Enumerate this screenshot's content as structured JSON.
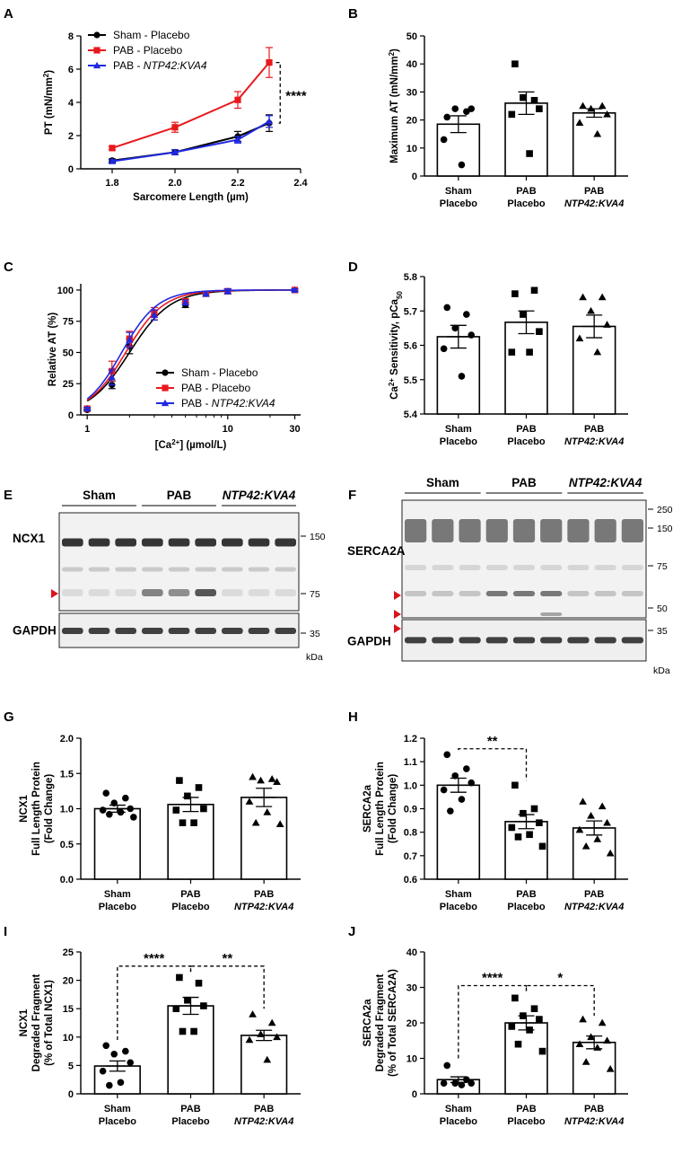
{
  "panels": {
    "A": {
      "letter": "A"
    },
    "B": {
      "letter": "B"
    },
    "C": {
      "letter": "C"
    },
    "D": {
      "letter": "D"
    },
    "E": {
      "letter": "E"
    },
    "F": {
      "letter": "F"
    },
    "G": {
      "letter": "G"
    },
    "H": {
      "letter": "H"
    },
    "I": {
      "letter": "I"
    },
    "J": {
      "letter": "J"
    }
  },
  "colors": {
    "sham": "#000000",
    "pab": "#e8191c",
    "kva4": "#1f29e0",
    "marker": "#d9151b"
  },
  "blot_E": {
    "groups": [
      "Sham",
      "PAB",
      "NTP42:KVA4"
    ],
    "rows": [
      "NCX1",
      "GAPDH"
    ],
    "mw": [
      "150",
      "75",
      "35"
    ],
    "unit": "kDa"
  },
  "blot_F": {
    "groups": [
      "Sham",
      "PAB",
      "NTP42:KVA4"
    ],
    "rows": [
      "SERCA2A",
      "GAPDH"
    ],
    "mw": [
      "250",
      "150",
      "75",
      "50",
      "35"
    ],
    "unit": "kDa"
  },
  "chart_data": [
    {
      "panel": "A",
      "type": "line",
      "xlabel": "Sarcomere Length (µm)",
      "ylabel": "PT (mN/mm",
      "ylabel_sup": "2",
      "ylabel_end": ")",
      "xlim": [
        1.7,
        2.4
      ],
      "ylim": [
        0,
        8
      ],
      "xticks": [
        "1.8",
        "2.0",
        "2.2",
        "2.4"
      ],
      "yticks": [
        "0",
        "2",
        "4",
        "6",
        "8"
      ],
      "legend": "top-left",
      "series": [
        {
          "name": "Sham - Placebo",
          "marker": "circle",
          "color": "#000000",
          "x": [
            1.8,
            2.0,
            2.2,
            2.3
          ],
          "y": [
            0.5,
            1.0,
            1.95,
            2.75
          ],
          "err": [
            0.1,
            0.15,
            0.3,
            0.5
          ]
        },
        {
          "name": "PAB - Placebo",
          "marker": "square",
          "color": "#e8191c",
          "x": [
            1.8,
            2.0,
            2.2,
            2.3
          ],
          "y": [
            1.25,
            2.5,
            4.15,
            6.4
          ],
          "err": [
            0.1,
            0.3,
            0.5,
            0.9
          ]
        },
        {
          "name": "PAB - ",
          "name_italic": "NTP42:KVA4",
          "marker": "triangle",
          "color": "#1f29e0",
          "x": [
            1.8,
            2.0,
            2.2,
            2.3
          ],
          "y": [
            0.45,
            1.0,
            1.75,
            2.85
          ],
          "err": [
            0.1,
            0.15,
            0.2,
            0.35
          ]
        }
      ],
      "annotation": "****"
    },
    {
      "panel": "B",
      "type": "bar",
      "ylabel": "Maximum AT (mN/mm",
      "ylabel_sup": "2",
      "ylabel_end": ")",
      "ylim": [
        0,
        50
      ],
      "yticks": [
        "0",
        "10",
        "20",
        "30",
        "40",
        "50"
      ],
      "categories": [
        [
          "Sham",
          "Placebo"
        ],
        [
          "PAB",
          "Placebo"
        ],
        [
          "PAB",
          "NTP42:KVA4"
        ]
      ],
      "values": [
        18.5,
        26,
        22.5
      ],
      "sem": [
        3,
        4,
        1.5
      ],
      "points": [
        [
          21,
          23,
          24,
          24,
          13,
          4
        ],
        [
          40,
          27,
          28,
          24,
          22,
          8
        ],
        [
          25,
          25,
          24,
          22,
          19,
          15
        ]
      ],
      "markers": [
        "circle",
        "square",
        "triangle"
      ]
    },
    {
      "panel": "C",
      "type": "line",
      "xlabel": "[Ca",
      "xlabel_sup": "2+",
      "xlabel_end": "] (µmol/L)",
      "ylabel": "Relative AT (%)",
      "xscale": "log",
      "xlim": [
        0.9,
        33
      ],
      "ylim": [
        0,
        105
      ],
      "xticks": [
        "1",
        "10",
        "30"
      ],
      "yticks": [
        "0",
        "25",
        "50",
        "75",
        "100"
      ],
      "legend": "bottom-right",
      "series": [
        {
          "name": "Sham - Placebo",
          "marker": "circle",
          "color": "#000000",
          "x": [
            1.0,
            1.5,
            2.0,
            3.0,
            5.0,
            7.0,
            10.0,
            30.0
          ],
          "y": [
            4,
            24,
            55,
            80,
            88,
            97,
            99,
            100
          ],
          "err": [
            1,
            3,
            6,
            4,
            2,
            2,
            2,
            1
          ]
        },
        {
          "name": "PAB - Placebo",
          "marker": "square",
          "color": "#e8191c",
          "x": [
            1.0,
            1.5,
            2.0,
            3.0,
            5.0,
            7.0,
            10.0,
            30.0
          ],
          "y": [
            5,
            35,
            61,
            82,
            91,
            97,
            99,
            100
          ],
          "err": [
            1,
            8,
            6,
            4,
            2,
            2,
            2,
            1
          ]
        },
        {
          "name": "PAB - ",
          "name_italic": "NTP42:KVA4",
          "marker": "triangle",
          "color": "#1f29e0",
          "x": [
            1.0,
            1.5,
            2.0,
            3.0,
            5.0,
            7.0,
            10.0,
            30.0
          ],
          "y": [
            5,
            30,
            60,
            80,
            90,
            97,
            99,
            100
          ],
          "err": [
            1,
            6,
            6,
            4,
            2,
            2,
            2,
            1
          ]
        }
      ]
    },
    {
      "panel": "D",
      "type": "bar",
      "ylabel": "Ca",
      "ylabel_sup": "2+",
      "ylabel_end": " Sensitivity, pCa",
      "ylabel_sub": "50",
      "ylim": [
        5.4,
        5.8
      ],
      "yticks": [
        "5.4",
        "5.5",
        "5.6",
        "5.7",
        "5.8"
      ],
      "categories": [
        [
          "Sham",
          "Placebo"
        ],
        [
          "PAB",
          "Placebo"
        ],
        [
          "PAB",
          "NTP42:KVA4"
        ]
      ],
      "values": [
        5.625,
        5.667,
        5.655
      ],
      "sem": [
        0.033,
        0.033,
        0.033
      ],
      "points": [
        [
          5.71,
          5.69,
          5.65,
          5.63,
          5.59,
          5.51
        ],
        [
          5.75,
          5.76,
          5.69,
          5.64,
          5.58,
          5.58
        ],
        [
          5.74,
          5.74,
          5.7,
          5.66,
          5.62,
          5.58
        ]
      ],
      "markers": [
        "circle",
        "square",
        "triangle"
      ]
    },
    {
      "panel": "G",
      "type": "bar",
      "ylabel": "NCX1",
      "ylabel2": "Full Length Protein",
      "ylabel3": "(Fold Change)",
      "ylim": [
        0,
        2.0
      ],
      "yticks": [
        "0.0",
        "0.5",
        "1.0",
        "1.5",
        "2.0"
      ],
      "categories": [
        [
          "Sham",
          "Placebo"
        ],
        [
          "PAB",
          "Placebo"
        ],
        [
          "PAB",
          "NTP42:KVA4"
        ]
      ],
      "values": [
        1.0,
        1.06,
        1.16
      ],
      "sem": [
        0.05,
        0.1,
        0.13
      ],
      "points": [
        [
          1.22,
          1.15,
          1.08,
          1.0,
          0.98,
          0.95,
          0.92,
          0.88
        ],
        [
          1.4,
          1.3,
          1.18,
          1.0,
          0.98,
          0.8,
          0.8
        ],
        [
          1.45,
          1.42,
          1.4,
          1.38,
          1.1,
          0.95,
          0.8,
          0.78
        ]
      ],
      "markers": [
        "circle",
        "square",
        "triangle"
      ]
    },
    {
      "panel": "H",
      "type": "bar",
      "ylabel": "SERCA2a",
      "ylabel2": "Full Length Protein",
      "ylabel3": "(Fold Change)",
      "ylim": [
        0.6,
        1.2
      ],
      "yticks": [
        "0.6",
        "0.7",
        "0.8",
        "0.9",
        "1.0",
        "1.1",
        "1.2"
      ],
      "categories": [
        [
          "Sham",
          "Placebo"
        ],
        [
          "PAB",
          "Placebo"
        ],
        [
          "PAB",
          "NTP42:KVA4"
        ]
      ],
      "values": [
        1.0,
        0.845,
        0.818
      ],
      "sem": [
        0.03,
        0.03,
        0.03
      ],
      "points": [
        [
          1.13,
          1.07,
          1.04,
          1.01,
          0.98,
          0.94,
          0.89
        ],
        [
          1.0,
          0.9,
          0.88,
          0.84,
          0.82,
          0.79,
          0.78,
          0.74
        ],
        [
          0.93,
          0.91,
          0.87,
          0.84,
          0.81,
          0.77,
          0.74,
          0.71
        ]
      ],
      "markers": [
        "circle",
        "square",
        "triangle"
      ],
      "annotation": "**"
    },
    {
      "panel": "I",
      "type": "bar",
      "ylabel": "NCX1",
      "ylabel2": "Degraded Fragment",
      "ylabel3": "(% of Total NCX1)",
      "ylim": [
        0,
        25
      ],
      "yticks": [
        "0",
        "5",
        "10",
        "15",
        "20",
        "25"
      ],
      "categories": [
        [
          "Sham",
          "Placebo"
        ],
        [
          "PAB",
          "Placebo"
        ],
        [
          "PAB",
          "NTP42:KVA4"
        ]
      ],
      "values": [
        4.9,
        15.5,
        10.3
      ],
      "sem": [
        0.9,
        1.5,
        0.9
      ],
      "points": [
        [
          8.5,
          7.5,
          7,
          5.5,
          4,
          2,
          1.5
        ],
        [
          20.5,
          19.5,
          16.5,
          15.5,
          15,
          11,
          11
        ],
        [
          14,
          12.5,
          10.5,
          10,
          9.5,
          6
        ]
      ],
      "markers": [
        "circle",
        "square",
        "triangle"
      ],
      "annotations": [
        "****",
        "**"
      ]
    },
    {
      "panel": "J",
      "type": "bar",
      "ylabel": "SERCA2a",
      "ylabel2": "Degraded Fragment",
      "ylabel3": "(% of Total SERCA2A)",
      "ylim": [
        0,
        40
      ],
      "yticks": [
        "0",
        "10",
        "20",
        "30",
        "40"
      ],
      "categories": [
        [
          "Sham",
          "Placebo"
        ],
        [
          "PAB",
          "Placebo"
        ],
        [
          "PAB",
          "NTP42:KVA4"
        ]
      ],
      "values": [
        4.0,
        20.0,
        14.5
      ],
      "sem": [
        0.8,
        2.0,
        1.8
      ],
      "points": [
        [
          8,
          4,
          3,
          3,
          3,
          2.5
        ],
        [
          27,
          24,
          22,
          21,
          19,
          18,
          14,
          12
        ],
        [
          21,
          20,
          16,
          15,
          14,
          13,
          9,
          7
        ]
      ],
      "markers": [
        "circle",
        "square",
        "triangle"
      ],
      "annotations": [
        "****",
        "*"
      ]
    }
  ]
}
